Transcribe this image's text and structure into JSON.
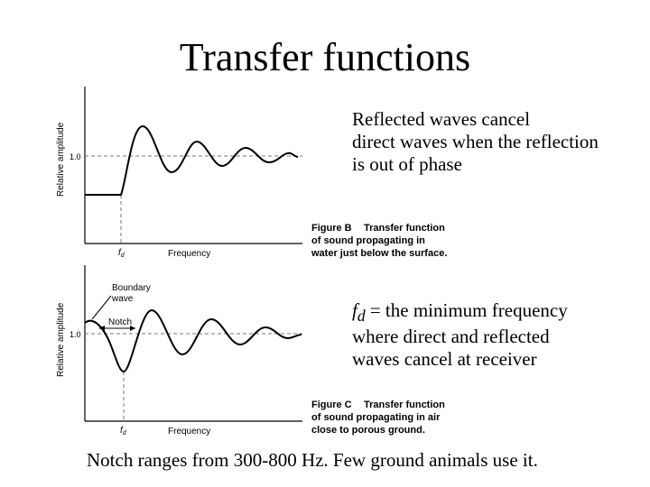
{
  "slide": {
    "title": "Transfer functions",
    "text_b": "Reflected waves cancel\ndirect waves when the reflection\nis out of phase",
    "text_c_symbol": "f",
    "text_c_sub": "d",
    "text_c_rest": " = the minimum frequency\nwhere direct and reflected\nwaves cancel at receiver",
    "bottom_text": "Notch ranges from 300-800 Hz.  Few ground animals use it."
  },
  "figure_b": {
    "ylabel": "Relative amplitude",
    "ytick": "1.0",
    "xlabel": "Frequency",
    "fd_symbol": "f",
    "fd_sub": "d",
    "caption_label": "Figure B",
    "caption_lines": [
      "Transfer function",
      "of sound propagating in",
      "water just below the surface."
    ]
  },
  "figure_c": {
    "ylabel": "Relative amplitude",
    "ytick": "1.0",
    "xlabel": "Frequency",
    "fd_symbol": "f",
    "fd_sub": "d",
    "annotation_boundary": [
      "Boundary",
      "wave"
    ],
    "annotation_notch": "Notch",
    "caption_label": "Figure C",
    "caption_lines": [
      "Transfer function",
      "of sound propagating in air",
      "close to porous ground."
    ]
  }
}
